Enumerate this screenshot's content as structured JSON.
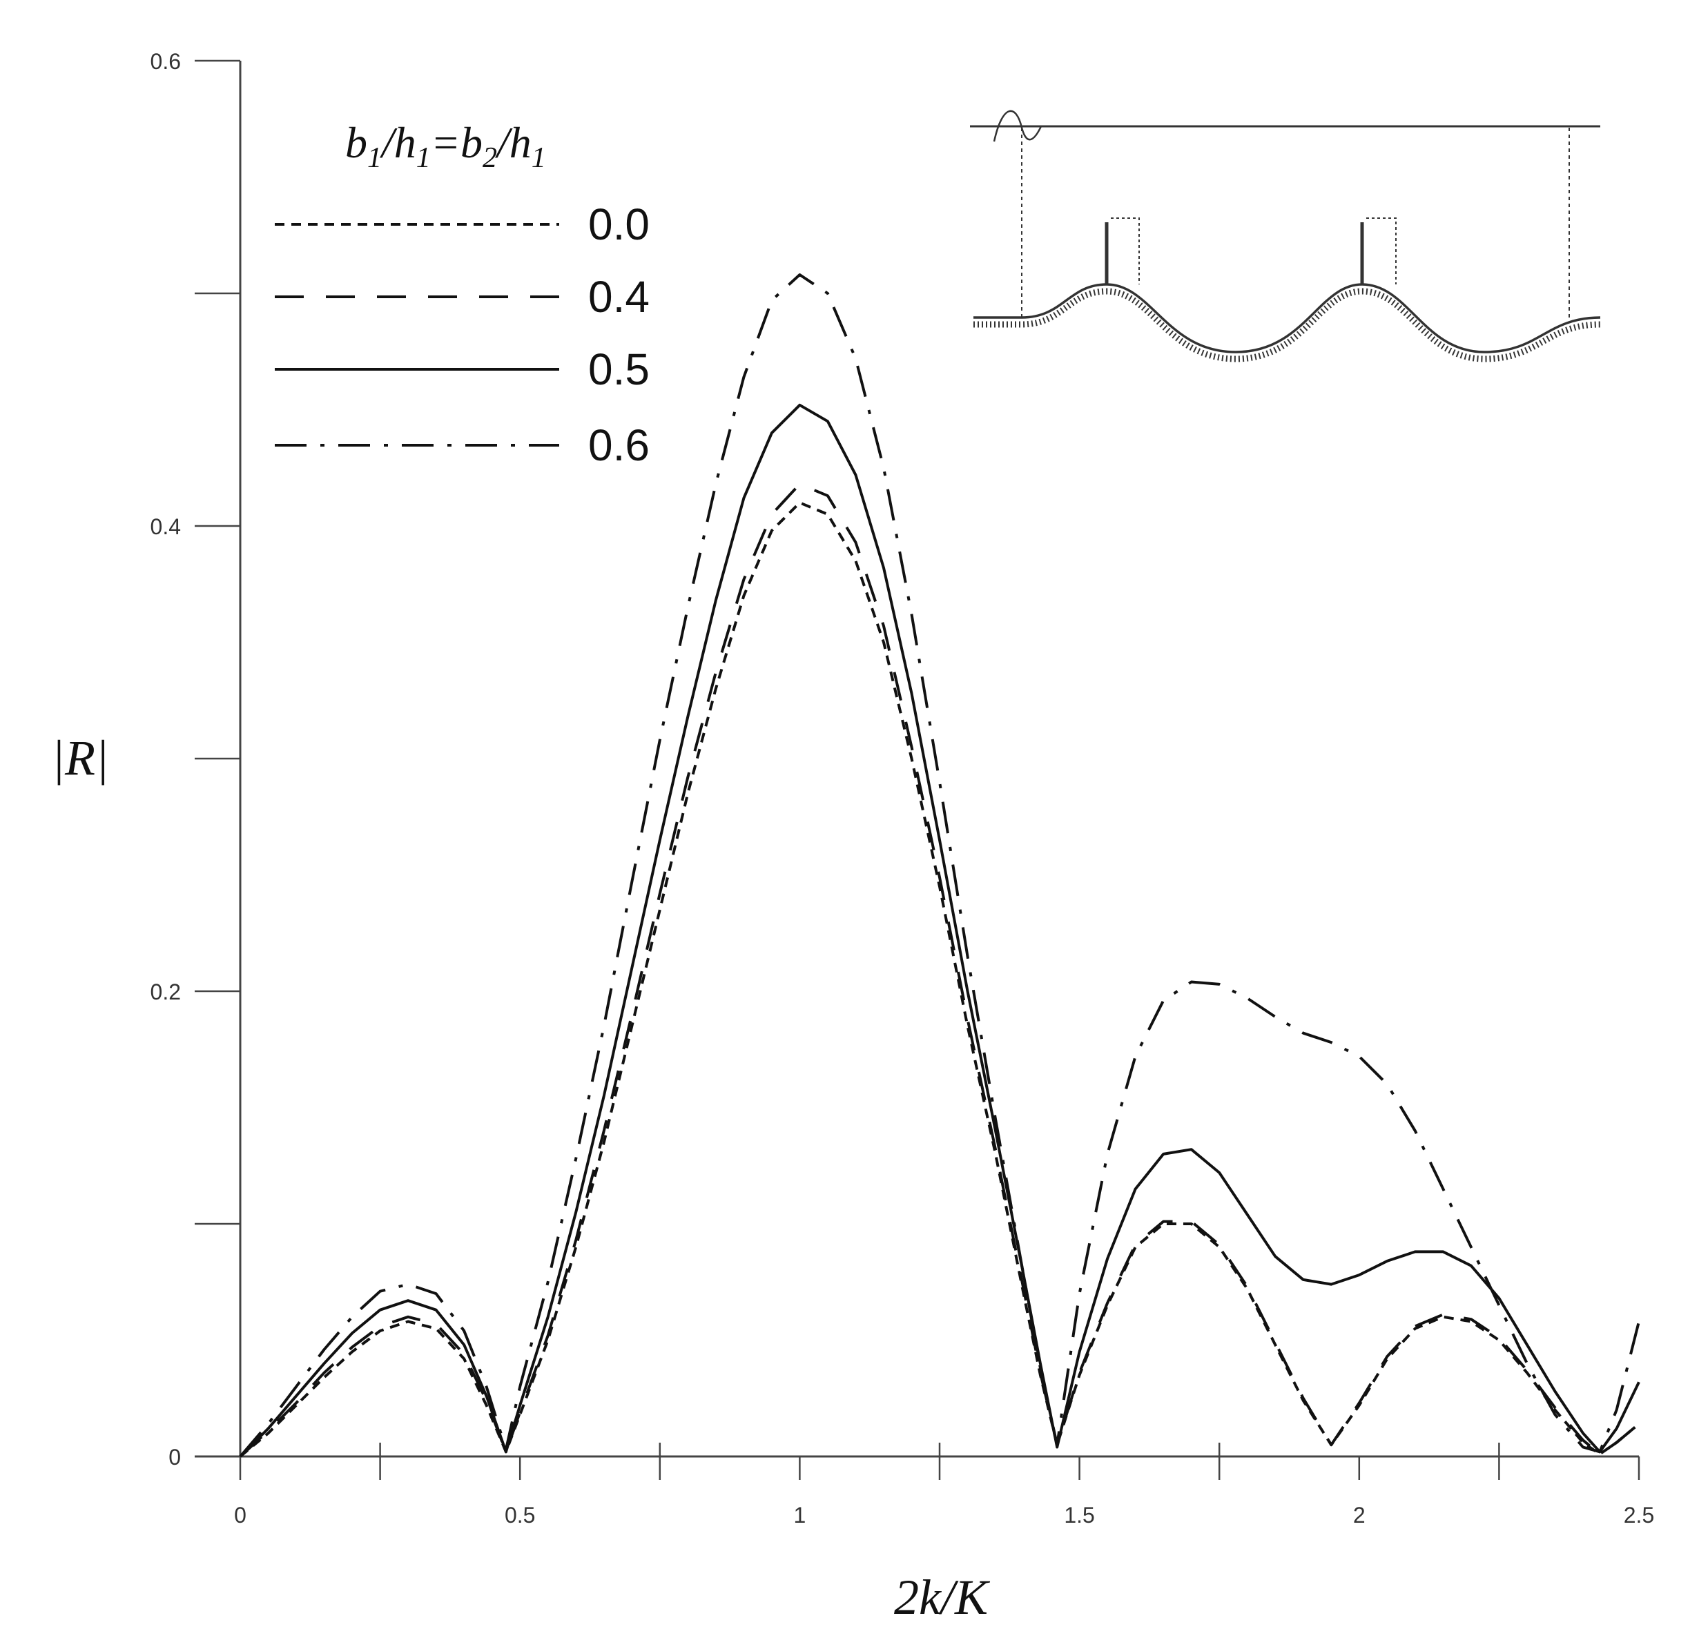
{
  "chart_data": {
    "type": "line",
    "title": "",
    "xlabel": "2k/K",
    "ylabel": "|R|",
    "xlim": [
      0,
      2.5
    ],
    "ylim": [
      0,
      0.6
    ],
    "xticks": [
      {
        "value": 0,
        "label": "0"
      },
      {
        "value": 0.5,
        "label": "0.5"
      },
      {
        "value": 1,
        "label": "1"
      },
      {
        "value": 1.5,
        "label": "1.5"
      },
      {
        "value": 2,
        "label": "2"
      },
      {
        "value": 2.5,
        "label": "2.5"
      }
    ],
    "xminor": [
      0.25,
      0.75,
      1.25,
      1.75,
      2.25
    ],
    "yticks": [
      {
        "value": 0,
        "label": "0"
      },
      {
        "value": 0.2,
        "label": "0.2"
      },
      {
        "value": 0.4,
        "label": "0.4"
      },
      {
        "value": 0.6,
        "label": "0.6"
      }
    ],
    "yminor": [
      0.1,
      0.3,
      0.5
    ],
    "grid": false,
    "legend": {
      "position": "top-left",
      "title": "b1/h1=b2/h1"
    },
    "series": [
      {
        "name": "0.0",
        "dash": "14 10",
        "points": [
          [
            0,
            0
          ],
          [
            0.05,
            0.01
          ],
          [
            0.1,
            0.022
          ],
          [
            0.15,
            0.034
          ],
          [
            0.2,
            0.045
          ],
          [
            0.25,
            0.054
          ],
          [
            0.3,
            0.058
          ],
          [
            0.35,
            0.055
          ],
          [
            0.4,
            0.042
          ],
          [
            0.44,
            0.022
          ],
          [
            0.475,
            0.002
          ],
          [
            0.5,
            0.018
          ],
          [
            0.55,
            0.05
          ],
          [
            0.6,
            0.09
          ],
          [
            0.65,
            0.135
          ],
          [
            0.7,
            0.185
          ],
          [
            0.75,
            0.235
          ],
          [
            0.8,
            0.285
          ],
          [
            0.85,
            0.33
          ],
          [
            0.9,
            0.37
          ],
          [
            0.95,
            0.398
          ],
          [
            1.0,
            0.41
          ],
          [
            1.05,
            0.405
          ],
          [
            1.1,
            0.385
          ],
          [
            1.15,
            0.35
          ],
          [
            1.2,
            0.3
          ],
          [
            1.25,
            0.245
          ],
          [
            1.3,
            0.185
          ],
          [
            1.35,
            0.13
          ],
          [
            1.4,
            0.07
          ],
          [
            1.43,
            0.035
          ],
          [
            1.46,
            0.005
          ],
          [
            1.5,
            0.035
          ],
          [
            1.55,
            0.065
          ],
          [
            1.6,
            0.09
          ],
          [
            1.65,
            0.1
          ],
          [
            1.7,
            0.1
          ],
          [
            1.75,
            0.09
          ],
          [
            1.8,
            0.072
          ],
          [
            1.85,
            0.048
          ],
          [
            1.9,
            0.024
          ],
          [
            1.95,
            0.005
          ],
          [
            2.0,
            0.022
          ],
          [
            2.05,
            0.042
          ],
          [
            2.1,
            0.055
          ],
          [
            2.15,
            0.06
          ],
          [
            2.2,
            0.058
          ],
          [
            2.25,
            0.05
          ],
          [
            2.3,
            0.036
          ],
          [
            2.35,
            0.02
          ],
          [
            2.4,
            0.006
          ],
          [
            2.43,
            0.001
          ],
          [
            2.46,
            0.006
          ],
          [
            2.5,
            0.014
          ]
        ]
      },
      {
        "name": "0.4",
        "dash": "42 32",
        "points": [
          [
            0,
            0
          ],
          [
            0.05,
            0.011
          ],
          [
            0.1,
            0.023
          ],
          [
            0.15,
            0.036
          ],
          [
            0.2,
            0.047
          ],
          [
            0.25,
            0.056
          ],
          [
            0.3,
            0.06
          ],
          [
            0.35,
            0.057
          ],
          [
            0.4,
            0.044
          ],
          [
            0.44,
            0.024
          ],
          [
            0.475,
            0.002
          ],
          [
            0.5,
            0.019
          ],
          [
            0.55,
            0.052
          ],
          [
            0.6,
            0.093
          ],
          [
            0.65,
            0.14
          ],
          [
            0.7,
            0.19
          ],
          [
            0.75,
            0.242
          ],
          [
            0.8,
            0.292
          ],
          [
            0.85,
            0.337
          ],
          [
            0.9,
            0.377
          ],
          [
            0.95,
            0.405
          ],
          [
            1.0,
            0.418
          ],
          [
            1.05,
            0.413
          ],
          [
            1.1,
            0.393
          ],
          [
            1.15,
            0.357
          ],
          [
            1.2,
            0.305
          ],
          [
            1.25,
            0.249
          ],
          [
            1.3,
            0.188
          ],
          [
            1.35,
            0.132
          ],
          [
            1.4,
            0.072
          ],
          [
            1.43,
            0.036
          ],
          [
            1.46,
            0.005
          ],
          [
            1.5,
            0.036
          ],
          [
            1.55,
            0.066
          ],
          [
            1.6,
            0.091
          ],
          [
            1.65,
            0.101
          ],
          [
            1.7,
            0.101
          ],
          [
            1.75,
            0.091
          ],
          [
            1.8,
            0.073
          ],
          [
            1.85,
            0.049
          ],
          [
            1.9,
            0.025
          ],
          [
            1.95,
            0.005
          ],
          [
            2.0,
            0.023
          ],
          [
            2.05,
            0.043
          ],
          [
            2.1,
            0.056
          ],
          [
            2.15,
            0.061
          ],
          [
            2.2,
            0.059
          ],
          [
            2.25,
            0.051
          ],
          [
            2.3,
            0.037
          ],
          [
            2.35,
            0.021
          ],
          [
            2.4,
            0.007
          ],
          [
            2.43,
            0.001
          ],
          [
            2.46,
            0.006
          ],
          [
            2.5,
            0.014
          ]
        ]
      },
      {
        "name": "0.5",
        "dash": "",
        "points": [
          [
            0,
            0
          ],
          [
            0.05,
            0.012
          ],
          [
            0.1,
            0.026
          ],
          [
            0.15,
            0.04
          ],
          [
            0.2,
            0.053
          ],
          [
            0.25,
            0.063
          ],
          [
            0.3,
            0.067
          ],
          [
            0.35,
            0.063
          ],
          [
            0.4,
            0.048
          ],
          [
            0.44,
            0.026
          ],
          [
            0.475,
            0.002
          ],
          [
            0.5,
            0.022
          ],
          [
            0.55,
            0.06
          ],
          [
            0.6,
            0.105
          ],
          [
            0.65,
            0.155
          ],
          [
            0.7,
            0.21
          ],
          [
            0.75,
            0.265
          ],
          [
            0.8,
            0.318
          ],
          [
            0.85,
            0.368
          ],
          [
            0.9,
            0.412
          ],
          [
            0.95,
            0.44
          ],
          [
            1.0,
            0.452
          ],
          [
            1.05,
            0.445
          ],
          [
            1.1,
            0.422
          ],
          [
            1.15,
            0.382
          ],
          [
            1.2,
            0.328
          ],
          [
            1.25,
            0.265
          ],
          [
            1.3,
            0.2
          ],
          [
            1.35,
            0.14
          ],
          [
            1.4,
            0.078
          ],
          [
            1.43,
            0.04
          ],
          [
            1.46,
            0.004
          ],
          [
            1.5,
            0.045
          ],
          [
            1.55,
            0.085
          ],
          [
            1.6,
            0.115
          ],
          [
            1.65,
            0.13
          ],
          [
            1.7,
            0.132
          ],
          [
            1.75,
            0.122
          ],
          [
            1.8,
            0.104
          ],
          [
            1.85,
            0.086
          ],
          [
            1.9,
            0.076
          ],
          [
            1.95,
            0.074
          ],
          [
            2.0,
            0.078
          ],
          [
            2.05,
            0.084
          ],
          [
            2.1,
            0.088
          ],
          [
            2.15,
            0.088
          ],
          [
            2.2,
            0.082
          ],
          [
            2.25,
            0.068
          ],
          [
            2.3,
            0.048
          ],
          [
            2.35,
            0.028
          ],
          [
            2.4,
            0.01
          ],
          [
            2.43,
            0.002
          ],
          [
            2.46,
            0.012
          ],
          [
            2.5,
            0.032
          ]
        ]
      },
      {
        "name": "0.6",
        "dash": "46 20 6 20",
        "points": [
          [
            0,
            0
          ],
          [
            0.05,
            0.014
          ],
          [
            0.1,
            0.03
          ],
          [
            0.15,
            0.046
          ],
          [
            0.2,
            0.06
          ],
          [
            0.25,
            0.071
          ],
          [
            0.3,
            0.074
          ],
          [
            0.35,
            0.07
          ],
          [
            0.4,
            0.054
          ],
          [
            0.44,
            0.03
          ],
          [
            0.475,
            0.003
          ],
          [
            0.5,
            0.03
          ],
          [
            0.55,
            0.075
          ],
          [
            0.6,
            0.128
          ],
          [
            0.65,
            0.185
          ],
          [
            0.7,
            0.247
          ],
          [
            0.75,
            0.308
          ],
          [
            0.8,
            0.365
          ],
          [
            0.85,
            0.418
          ],
          [
            0.9,
            0.464
          ],
          [
            0.95,
            0.497
          ],
          [
            1.0,
            0.508
          ],
          [
            1.05,
            0.5
          ],
          [
            1.1,
            0.472
          ],
          [
            1.15,
            0.425
          ],
          [
            1.2,
            0.362
          ],
          [
            1.25,
            0.29
          ],
          [
            1.3,
            0.215
          ],
          [
            1.35,
            0.145
          ],
          [
            1.4,
            0.078
          ],
          [
            1.43,
            0.038
          ],
          [
            1.46,
            0.005
          ],
          [
            1.5,
            0.07
          ],
          [
            1.55,
            0.13
          ],
          [
            1.6,
            0.172
          ],
          [
            1.65,
            0.196
          ],
          [
            1.7,
            0.204
          ],
          [
            1.75,
            0.203
          ],
          [
            1.8,
            0.197
          ],
          [
            1.85,
            0.189
          ],
          [
            1.9,
            0.182
          ],
          [
            1.95,
            0.178
          ],
          [
            2.0,
            0.172
          ],
          [
            2.05,
            0.16
          ],
          [
            2.1,
            0.14
          ],
          [
            2.15,
            0.115
          ],
          [
            2.2,
            0.09
          ],
          [
            2.25,
            0.065
          ],
          [
            2.3,
            0.04
          ],
          [
            2.35,
            0.018
          ],
          [
            2.4,
            0.004
          ],
          [
            2.43,
            0.002
          ],
          [
            2.46,
            0.02
          ],
          [
            2.5,
            0.058
          ]
        ]
      }
    ]
  },
  "inset": {
    "description_icon": "wave-over-rippled-bed-with-two-barriers-icon"
  }
}
